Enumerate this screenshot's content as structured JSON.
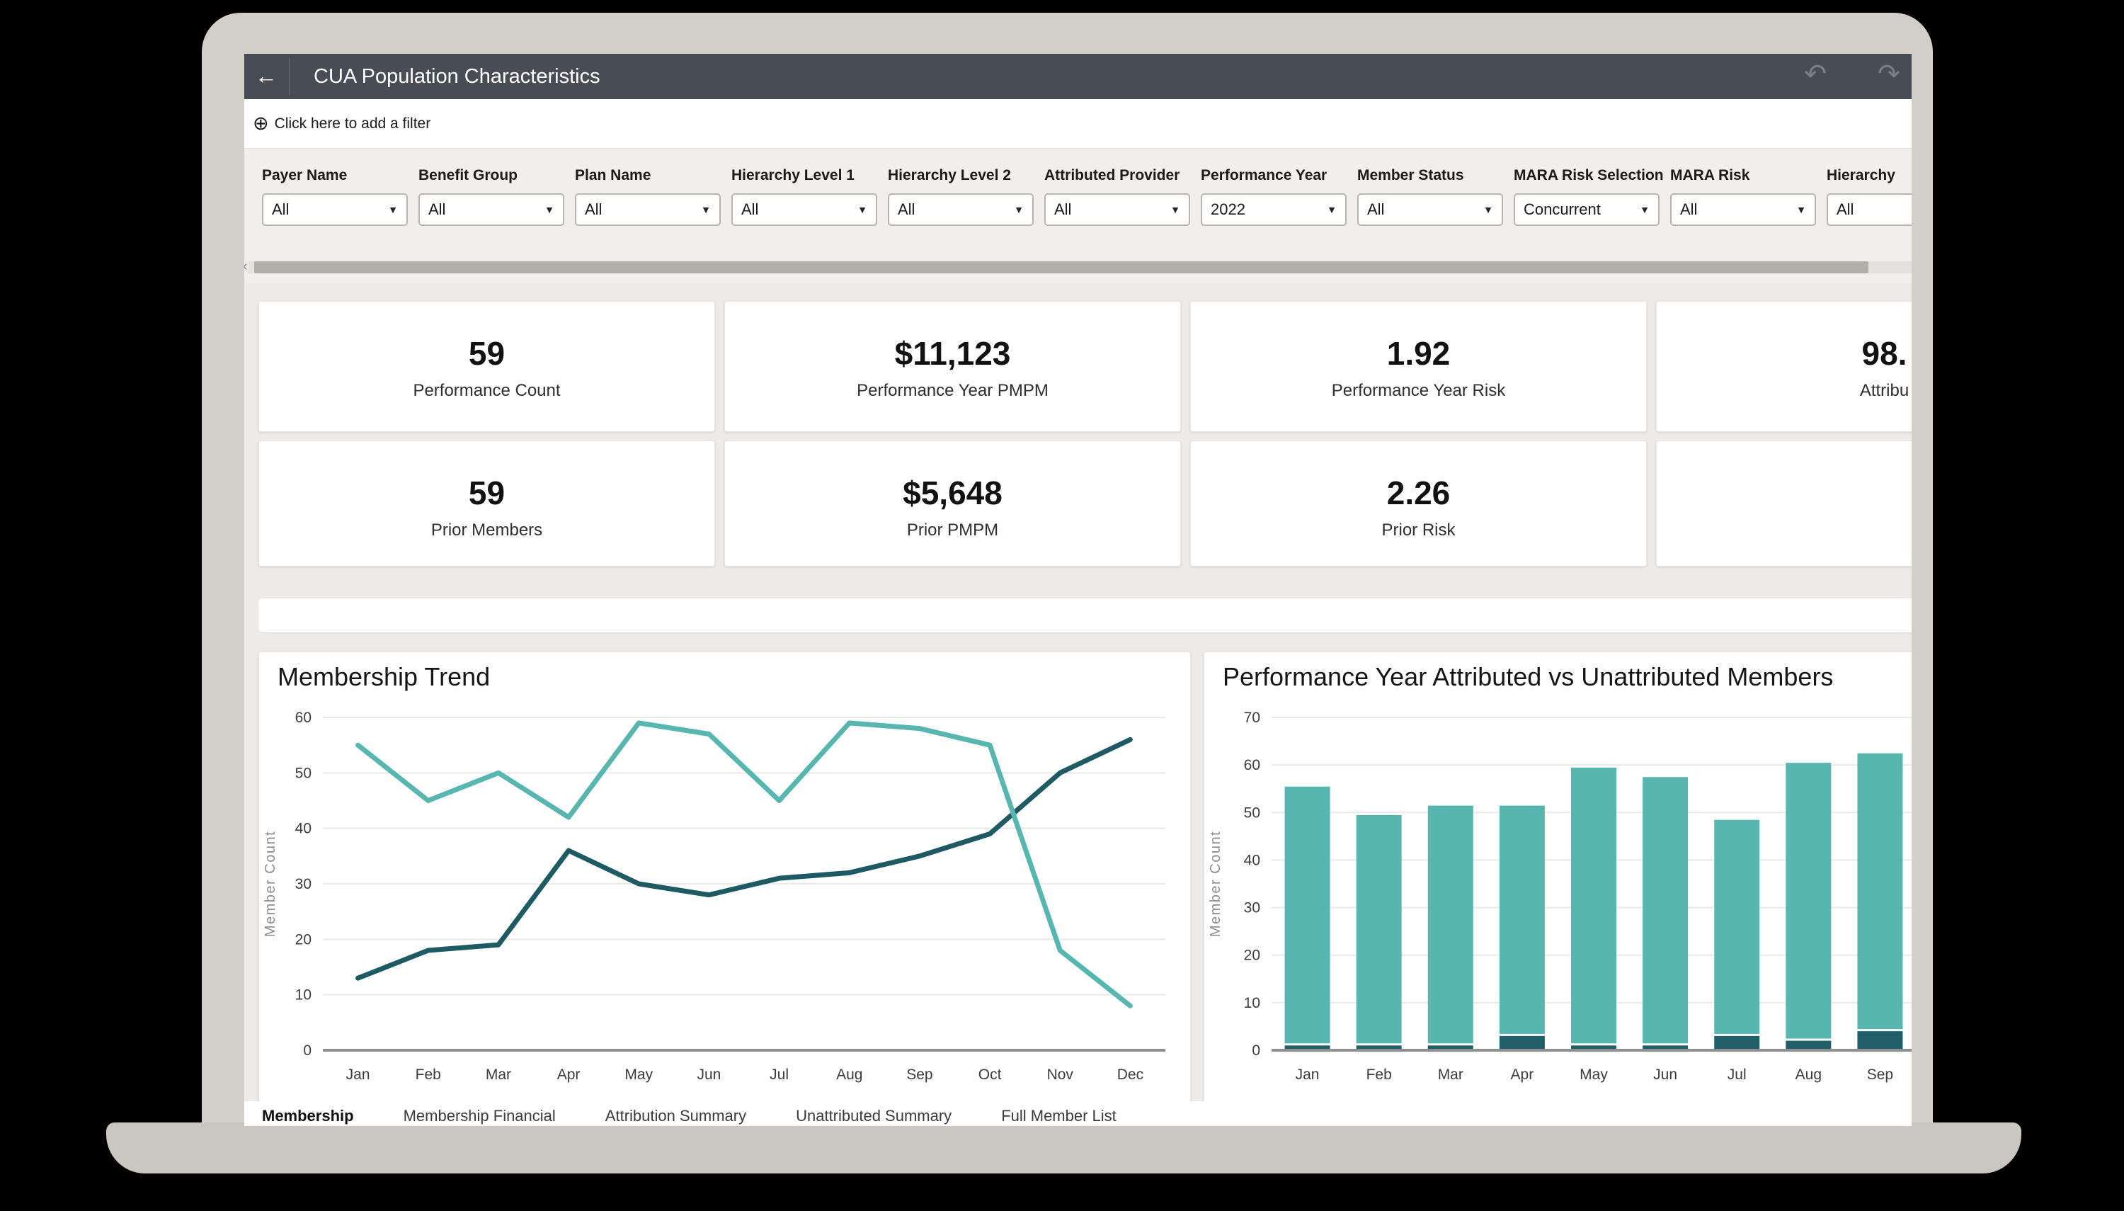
{
  "header": {
    "title": "CUA Population Characteristics",
    "back_icon": "←",
    "undo_icon": "↶",
    "redo_icon": "↷"
  },
  "filter_add": {
    "icon": "⊕",
    "label": "Click here to add a filter"
  },
  "filters": [
    {
      "label": "Payer Name",
      "value": "All"
    },
    {
      "label": "Benefit Group",
      "value": "All"
    },
    {
      "label": "Plan Name",
      "value": "All"
    },
    {
      "label": "Hierarchy Level 1",
      "value": "All"
    },
    {
      "label": "Hierarchy Level 2",
      "value": "All"
    },
    {
      "label": "Attributed Provider",
      "value": "All"
    },
    {
      "label": "Performance Year",
      "value": "2022"
    },
    {
      "label": "Member Status",
      "value": "All"
    },
    {
      "label": "MARA Risk Selection",
      "value": "Concurrent"
    },
    {
      "label": "MARA Risk",
      "value": "All"
    },
    {
      "label": "Hierarchy",
      "value": "All"
    }
  ],
  "kpi_rows": [
    [
      {
        "value": "59",
        "label": "Performance Count"
      },
      {
        "value": "$11,123",
        "label": "Performance Year PMPM"
      },
      {
        "value": "1.92",
        "label": "Performance Year Risk"
      },
      {
        "value": "98.",
        "label": "Attribu"
      }
    ],
    [
      {
        "value": "59",
        "label": "Prior Members"
      },
      {
        "value": "$5,648",
        "label": "Prior PMPM"
      },
      {
        "value": "2.26",
        "label": "Prior Risk"
      },
      {
        "value": "",
        "label": "",
        "empty": true
      }
    ]
  ],
  "tabs": [
    {
      "label": "Membership",
      "active": true
    },
    {
      "label": "Membership Financial",
      "active": false
    },
    {
      "label": "Attribution Summary",
      "active": false
    },
    {
      "label": "Unattributed Summary",
      "active": false
    },
    {
      "label": "Full Member List",
      "active": false
    }
  ],
  "chart_data": [
    {
      "type": "line",
      "title": "Membership Trend",
      "categories": [
        "Jan",
        "Feb",
        "Mar",
        "Apr",
        "May",
        "Jun",
        "Jul",
        "Aug",
        "Sep",
        "Oct",
        "Nov",
        "Dec"
      ],
      "series": [
        {
          "name": "dark-teal-line",
          "color": "#1e5a64",
          "values": [
            13,
            18,
            19,
            36,
            30,
            28,
            31,
            32,
            35,
            39,
            50,
            56
          ]
        },
        {
          "name": "light-teal-line",
          "color": "#57b7b0",
          "values": [
            55,
            45,
            50,
            42,
            59,
            57,
            45,
            59,
            58,
            55,
            18,
            8
          ]
        }
      ],
      "xlabel": "",
      "ylabel": "Member Count",
      "ylim": [
        0,
        60
      ],
      "ytick_step": 10,
      "grid": true,
      "legend": "none"
    },
    {
      "type": "bar",
      "title": "Performance Year Attributed vs Unattributed Members",
      "categories": [
        "Jan",
        "Feb",
        "Mar",
        "Apr",
        "May",
        "Jun",
        "Jul",
        "Aug",
        "Sep"
      ],
      "series": [
        {
          "name": "unattributed",
          "color": "#215f68",
          "values": [
            1,
            1,
            1,
            3,
            1,
            1,
            3,
            2,
            4
          ]
        },
        {
          "name": "attributed",
          "color": "#57b7b0",
          "values": [
            54,
            48,
            50,
            48,
            58,
            56,
            45,
            58,
            58
          ]
        }
      ],
      "stacked": true,
      "xlabel": "",
      "ylabel": "Member Count",
      "ylim": [
        0,
        70
      ],
      "ytick_step": 10,
      "grid": true,
      "legend": "none"
    }
  ],
  "colors": {
    "header_bar": "#484d55",
    "accent_teal": "#57b7b0",
    "accent_dark_teal": "#1e5a64",
    "page_background": "#ecebe9",
    "filter_band": "#f0efed"
  }
}
